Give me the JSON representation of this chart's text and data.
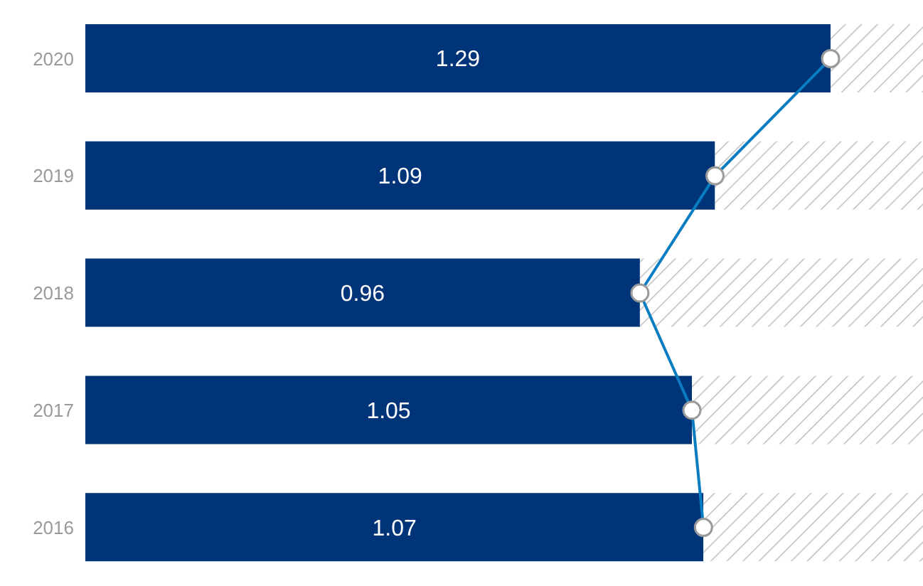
{
  "chart_data": {
    "type": "bar",
    "orientation": "horizontal",
    "stacked": true,
    "categories": [
      "2020",
      "2019",
      "2018",
      "2017",
      "2016"
    ],
    "xlim": [
      0,
      1.45
    ],
    "tick_labels": "y",
    "series": [
      {
        "color": "#003479",
        "values": [
          1.29,
          1.09,
          0.96,
          1.05,
          1.07
        ],
        "value_labels": [
          "1.29",
          "1.09",
          "0.96",
          "1.05",
          "1.07"
        ]
      },
      {
        "color": "#bdbdbd",
        "values": [
          0.16,
          0.36,
          0.49,
          0.4,
          0.38
        ]
      },
      {
        "type": "line",
        "color": "#0a7cc1",
        "marker": "circle",
        "values": [
          1.29,
          1.09,
          0.96,
          1.05,
          1.07
        ]
      }
    ]
  }
}
